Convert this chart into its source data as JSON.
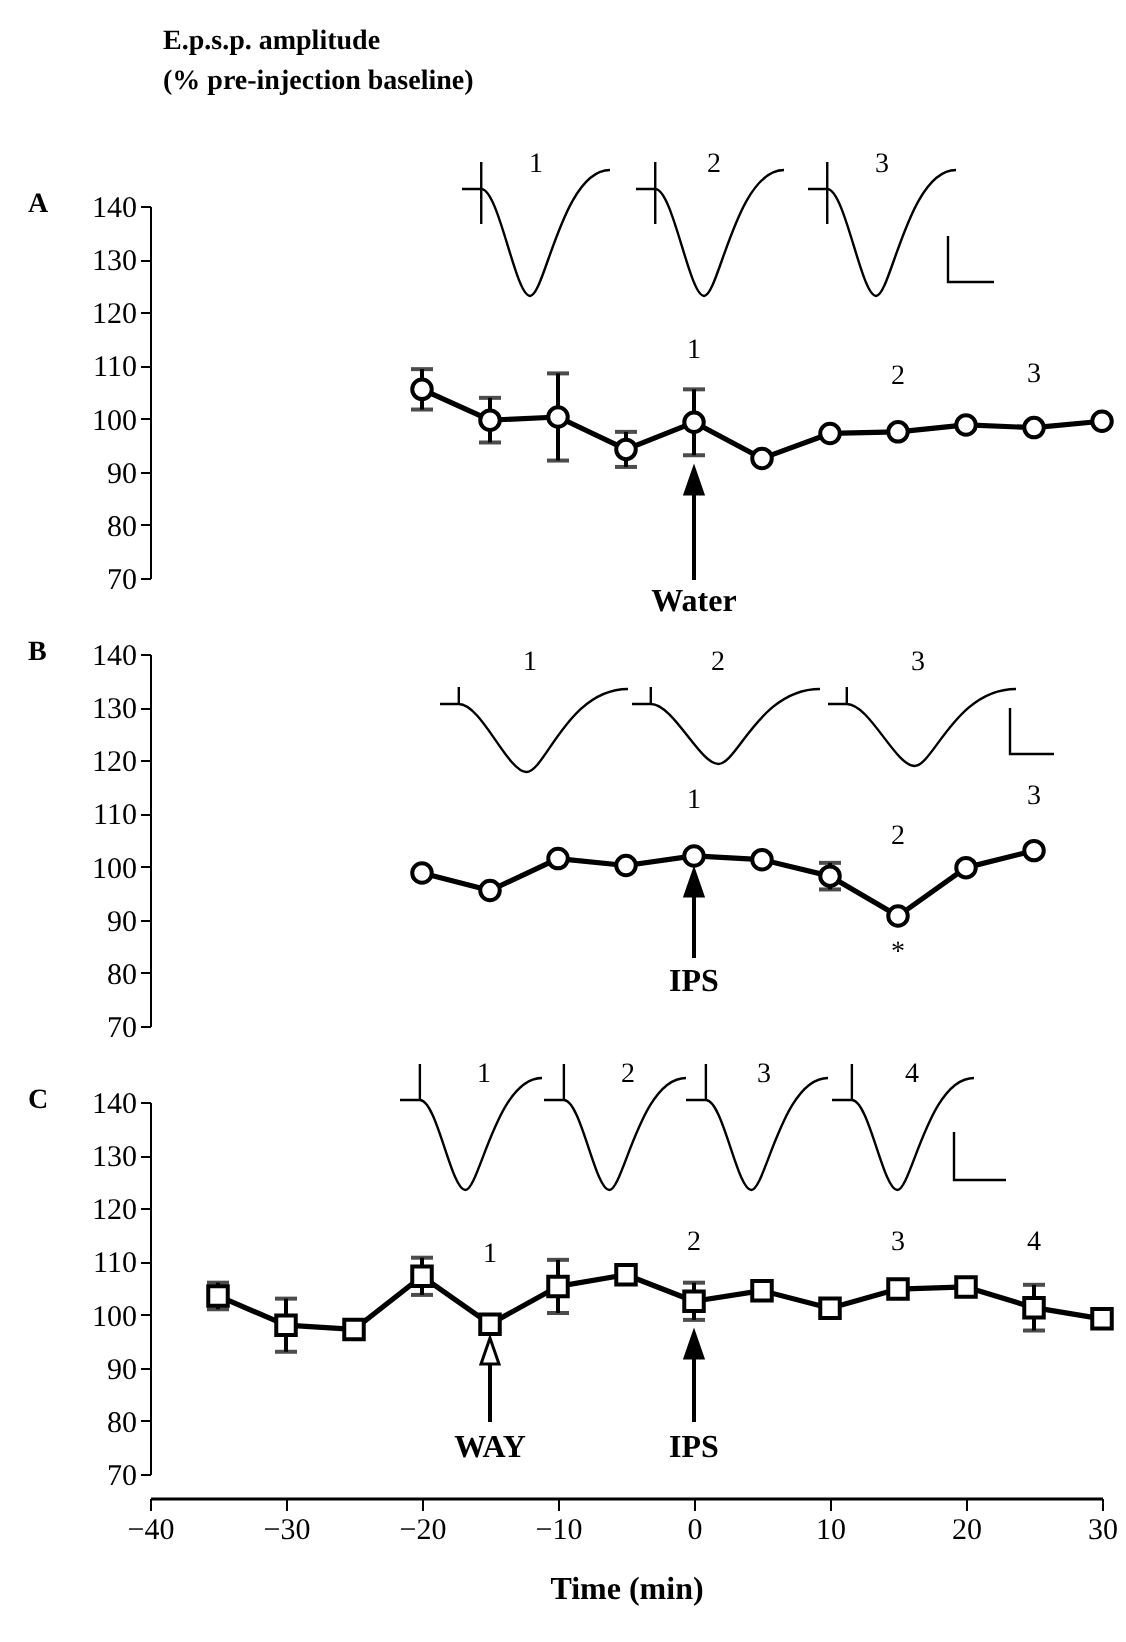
{
  "chart_data": [
    {
      "type": "line",
      "ylabel": "E.p.s.p.  amplitude\n(%  pre-injection  baseline)",
      "title": "A",
      "x": [
        -20,
        -15,
        -10,
        -5,
        0,
        5,
        10,
        15,
        20,
        25,
        30
      ],
      "xlim": [
        -40,
        30
      ],
      "ylim": [
        70,
        140
      ],
      "yticks": [
        70,
        80,
        90,
        100,
        110,
        120,
        130,
        140
      ],
      "tick_labels": "y",
      "marker": "circle",
      "series": [
        {
          "color": "#000000",
          "values": [
            105.5,
            99.7,
            100.3,
            94.2,
            99.3,
            92.5,
            97.2,
            97.5,
            98.8,
            98.3,
            99.5
          ],
          "errors": [
            3.8,
            4.2,
            8.2,
            3.3,
            6.2,
            null,
            null,
            null,
            null,
            null,
            null
          ]
        }
      ],
      "annotations": [
        "1",
        "2",
        "3",
        "1",
        "2",
        "3",
        "Water"
      ]
    },
    {
      "type": "line",
      "title": "B",
      "x": [
        -20,
        -15,
        -10,
        -5,
        0,
        5,
        10,
        15,
        20,
        25
      ],
      "xlim": [
        -40,
        30
      ],
      "ylim": [
        70,
        140
      ],
      "yticks": [
        70,
        80,
        90,
        100,
        110,
        120,
        130,
        140
      ],
      "tick_labels": "y",
      "marker": "circle",
      "series": [
        {
          "color": "#000000",
          "values": [
            98.8,
            95.5,
            101.5,
            100.2,
            102,
            101.3,
            98.2,
            90.7,
            99.8,
            103
          ],
          "errors": [
            null,
            null,
            null,
            null,
            null,
            null,
            2.5,
            null,
            null,
            null
          ]
        }
      ],
      "annotations": [
        "1",
        "2",
        "3",
        "1",
        "2",
        "3",
        "*",
        "IPS"
      ]
    },
    {
      "type": "line",
      "title": "C",
      "xlabel": "Time  (min)",
      "x": [
        -35,
        -30,
        -25,
        -20,
        -15,
        -10,
        -5,
        0,
        5,
        10,
        15,
        20,
        25,
        30
      ],
      "xlim": [
        -40,
        30
      ],
      "xticks": [
        -40,
        -30,
        -20,
        -10,
        0,
        10,
        20,
        30
      ],
      "ylim": [
        70,
        140
      ],
      "yticks": [
        70,
        80,
        90,
        100,
        110,
        120,
        130,
        140
      ],
      "marker": "square",
      "series": [
        {
          "color": "#000000",
          "values": [
            103.5,
            98,
            97.2,
            107.2,
            98.2,
            105.3,
            107.5,
            102.5,
            104.5,
            101.2,
            104.8,
            105.2,
            101.3,
            99.2
          ],
          "errors": [
            2.5,
            5,
            null,
            3.5,
            null,
            5,
            null,
            3.5,
            null,
            null,
            null,
            1.5,
            4.3,
            null
          ]
        }
      ],
      "annotations": [
        "1",
        "2",
        "3",
        "4",
        "1",
        "2",
        "3",
        "4",
        "WAY",
        "IPS"
      ]
    }
  ]
}
